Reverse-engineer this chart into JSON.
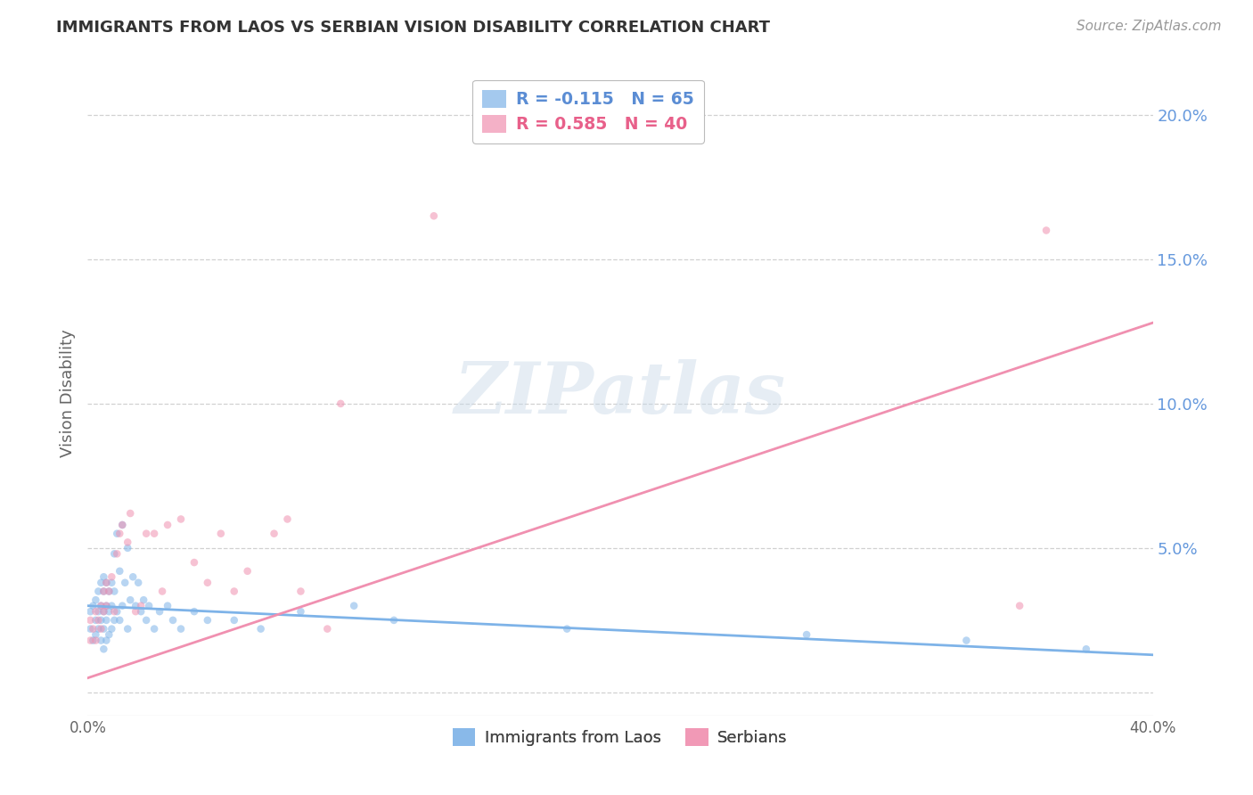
{
  "title": "IMMIGRANTS FROM LAOS VS SERBIAN VISION DISABILITY CORRELATION CHART",
  "source": "Source: ZipAtlas.com",
  "ylabel": "Vision Disability",
  "watermark": "ZIPatlas",
  "legend_blue_label": "R = -0.115   N = 65",
  "legend_pink_label": "R = 0.585   N = 40",
  "legend_labels_bottom": [
    "Immigrants from Laos",
    "Serbians"
  ],
  "xmin": 0.0,
  "xmax": 0.4,
  "ymin": -0.008,
  "ymax": 0.215,
  "yticks": [
    0.0,
    0.05,
    0.1,
    0.15,
    0.2
  ],
  "ytick_labels": [
    "",
    "5.0%",
    "10.0%",
    "15.0%",
    "20.0%"
  ],
  "xticks": [
    0.0,
    0.1,
    0.2,
    0.3,
    0.4
  ],
  "xtick_labels": [
    "0.0%",
    "",
    "",
    "",
    "40.0%"
  ],
  "blue_color": "#7eb3e8",
  "pink_color": "#f090b0",
  "blue_text_color": "#5b8dd4",
  "pink_text_color": "#e8608a",
  "ytick_color": "#6699dd",
  "grid_color": "#cccccc",
  "background_color": "#ffffff",
  "blue_scatter_x": [
    0.001,
    0.001,
    0.002,
    0.002,
    0.003,
    0.003,
    0.003,
    0.004,
    0.004,
    0.004,
    0.005,
    0.005,
    0.005,
    0.005,
    0.006,
    0.006,
    0.006,
    0.006,
    0.006,
    0.007,
    0.007,
    0.007,
    0.007,
    0.008,
    0.008,
    0.008,
    0.009,
    0.009,
    0.009,
    0.01,
    0.01,
    0.01,
    0.011,
    0.011,
    0.012,
    0.012,
    0.013,
    0.013,
    0.014,
    0.015,
    0.015,
    0.016,
    0.017,
    0.018,
    0.019,
    0.02,
    0.021,
    0.022,
    0.023,
    0.025,
    0.027,
    0.03,
    0.032,
    0.035,
    0.04,
    0.045,
    0.055,
    0.065,
    0.08,
    0.1,
    0.115,
    0.18,
    0.27,
    0.33,
    0.375
  ],
  "blue_scatter_y": [
    0.022,
    0.028,
    0.018,
    0.03,
    0.02,
    0.025,
    0.032,
    0.022,
    0.028,
    0.035,
    0.018,
    0.025,
    0.03,
    0.038,
    0.015,
    0.022,
    0.028,
    0.035,
    0.04,
    0.018,
    0.025,
    0.03,
    0.038,
    0.02,
    0.028,
    0.035,
    0.022,
    0.03,
    0.038,
    0.025,
    0.035,
    0.048,
    0.028,
    0.055,
    0.025,
    0.042,
    0.03,
    0.058,
    0.038,
    0.022,
    0.05,
    0.032,
    0.04,
    0.03,
    0.038,
    0.028,
    0.032,
    0.025,
    0.03,
    0.022,
    0.028,
    0.03,
    0.025,
    0.022,
    0.028,
    0.025,
    0.025,
    0.022,
    0.028,
    0.03,
    0.025,
    0.022,
    0.02,
    0.018,
    0.015
  ],
  "pink_scatter_x": [
    0.001,
    0.001,
    0.002,
    0.003,
    0.003,
    0.004,
    0.005,
    0.005,
    0.006,
    0.006,
    0.007,
    0.007,
    0.008,
    0.009,
    0.01,
    0.011,
    0.012,
    0.013,
    0.015,
    0.016,
    0.018,
    0.02,
    0.022,
    0.025,
    0.028,
    0.03,
    0.035,
    0.04,
    0.045,
    0.05,
    0.055,
    0.06,
    0.07,
    0.075,
    0.08,
    0.09,
    0.095,
    0.13,
    0.35,
    0.36
  ],
  "pink_scatter_y": [
    0.018,
    0.025,
    0.022,
    0.018,
    0.028,
    0.025,
    0.03,
    0.022,
    0.028,
    0.035,
    0.03,
    0.038,
    0.035,
    0.04,
    0.028,
    0.048,
    0.055,
    0.058,
    0.052,
    0.062,
    0.028,
    0.03,
    0.055,
    0.055,
    0.035,
    0.058,
    0.06,
    0.045,
    0.038,
    0.055,
    0.035,
    0.042,
    0.055,
    0.06,
    0.035,
    0.022,
    0.1,
    0.165,
    0.03,
    0.16
  ],
  "blue_line_x": [
    0.0,
    0.4
  ],
  "blue_line_y": [
    0.03,
    0.013
  ],
  "pink_line_x": [
    0.0,
    0.4
  ],
  "pink_line_y": [
    0.005,
    0.128
  ]
}
